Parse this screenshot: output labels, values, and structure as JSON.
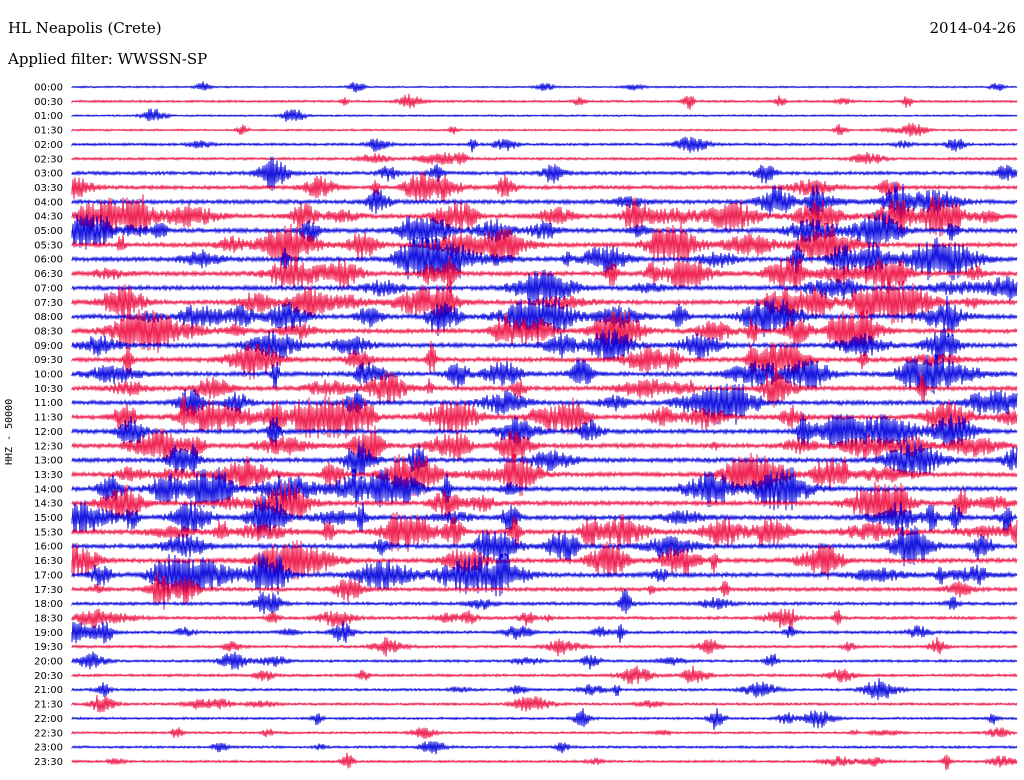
{
  "header": {
    "station": "HL Neapolis (Crete)",
    "date": "2014-04-26",
    "filter": "Applied filter: WWSSN-SP"
  },
  "chart_data": {
    "type": "line",
    "title": "HL Neapolis (Crete)",
    "ylabel": "HHZ - 50000",
    "xlabel": "",
    "row_labels": [
      "00:00",
      "00:30",
      "01:00",
      "01:30",
      "02:00",
      "02:30",
      "03:00",
      "03:30",
      "04:00",
      "04:30",
      "05:00",
      "05:30",
      "06:00",
      "06:30",
      "07:00",
      "07:30",
      "08:00",
      "08:30",
      "09:00",
      "09:30",
      "10:00",
      "10:30",
      "11:00",
      "11:30",
      "12:00",
      "12:30",
      "13:00",
      "13:30",
      "14:00",
      "14:30",
      "15:00",
      "15:30",
      "16:00",
      "16:30",
      "17:00",
      "17:30",
      "18:00",
      "18:30",
      "19:00",
      "19:30",
      "20:00",
      "20:30",
      "21:00",
      "21:30",
      "22:00",
      "22:30",
      "23:00",
      "23:30"
    ],
    "colors": {
      "even_rows": "#0000dd",
      "odd_rows": "#ee1144"
    },
    "activity": [
      0.15,
      0.3,
      0.15,
      0.2,
      0.4,
      0.4,
      0.7,
      0.75,
      0.9,
      0.95,
      1,
      1,
      1,
      1,
      1,
      1,
      1,
      1,
      1,
      1,
      1,
      1,
      1,
      1,
      1,
      1,
      1,
      1,
      1,
      1,
      1,
      1,
      1,
      1,
      1,
      0.8,
      0.6,
      0.55,
      0.5,
      0.45,
      0.4,
      0.45,
      0.4,
      0.4,
      0.35,
      0.3,
      0.35,
      0.35
    ]
  }
}
